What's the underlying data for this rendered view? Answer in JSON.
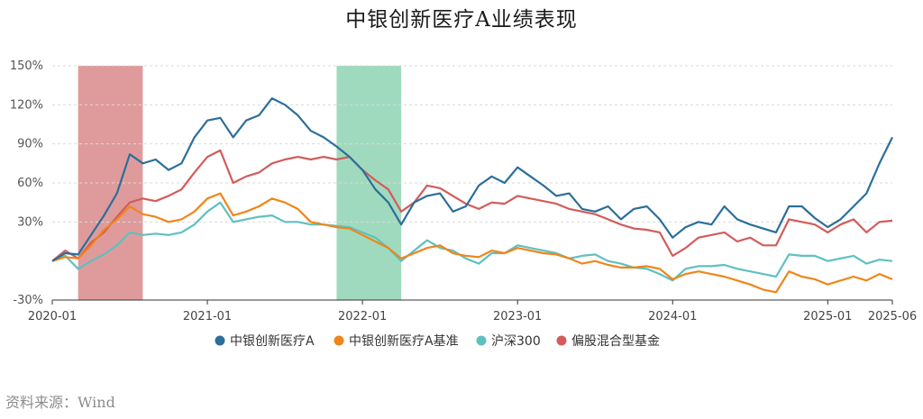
{
  "chart_data": {
    "type": "line",
    "title": "中银创新医疗A业绩表现",
    "xlabel": "",
    "ylabel": "",
    "x_tick_labels": [
      "2020-01",
      "2021-01",
      "2022-01",
      "2023-01",
      "2024-01",
      "2025-01",
      "2025-06"
    ],
    "y_tick_labels": [
      "150%",
      "120%",
      "90%",
      "60%",
      "30%",
      "-30%"
    ],
    "ylim": [
      -30,
      150
    ],
    "xlim": [
      "2020-01",
      "2025-06"
    ],
    "grid": true,
    "legend_position": "bottom",
    "highlight_periods": [
      {
        "start": "2020-03",
        "end": "2020-08",
        "color": "#d98a8a"
      },
      {
        "start": "2021-11",
        "end": "2022-04",
        "color": "#8fd3b3"
      }
    ],
    "series": [
      {
        "name": "中银创新医疗A",
        "color": "#2b6f9a",
        "points": [
          [
            "2020-01",
            0
          ],
          [
            "2020-02",
            6
          ],
          [
            "2020-03",
            5
          ],
          [
            "2020-04",
            20
          ],
          [
            "2020-05",
            35
          ],
          [
            "2020-06",
            52
          ],
          [
            "2020-07",
            82
          ],
          [
            "2020-08",
            75
          ],
          [
            "2020-09",
            78
          ],
          [
            "2020-10",
            70
          ],
          [
            "2020-11",
            75
          ],
          [
            "2020-12",
            95
          ],
          [
            "2021-01",
            108
          ],
          [
            "2021-02",
            110
          ],
          [
            "2021-03",
            95
          ],
          [
            "2021-04",
            108
          ],
          [
            "2021-05",
            112
          ],
          [
            "2021-06",
            125
          ],
          [
            "2021-07",
            120
          ],
          [
            "2021-08",
            112
          ],
          [
            "2021-09",
            100
          ],
          [
            "2021-10",
            95
          ],
          [
            "2021-11",
            88
          ],
          [
            "2021-12",
            80
          ],
          [
            "2022-01",
            70
          ],
          [
            "2022-02",
            55
          ],
          [
            "2022-03",
            45
          ],
          [
            "2022-04",
            28
          ],
          [
            "2022-05",
            45
          ],
          [
            "2022-06",
            50
          ],
          [
            "2022-07",
            52
          ],
          [
            "2022-08",
            38
          ],
          [
            "2022-09",
            42
          ],
          [
            "2022-10",
            58
          ],
          [
            "2022-11",
            65
          ],
          [
            "2022-12",
            60
          ],
          [
            "2023-01",
            72
          ],
          [
            "2023-02",
            65
          ],
          [
            "2023-03",
            58
          ],
          [
            "2023-04",
            50
          ],
          [
            "2023-05",
            52
          ],
          [
            "2023-06",
            40
          ],
          [
            "2023-07",
            38
          ],
          [
            "2023-08",
            42
          ],
          [
            "2023-09",
            32
          ],
          [
            "2023-10",
            40
          ],
          [
            "2023-11",
            42
          ],
          [
            "2023-12",
            32
          ],
          [
            "2024-01",
            18
          ],
          [
            "2024-02",
            26
          ],
          [
            "2024-03",
            30
          ],
          [
            "2024-04",
            28
          ],
          [
            "2024-05",
            42
          ],
          [
            "2024-06",
            32
          ],
          [
            "2024-07",
            28
          ],
          [
            "2024-08",
            25
          ],
          [
            "2024-09",
            22
          ],
          [
            "2024-10",
            42
          ],
          [
            "2024-11",
            42
          ],
          [
            "2024-12",
            33
          ],
          [
            "2025-01",
            26
          ],
          [
            "2025-02",
            32
          ],
          [
            "2025-03",
            42
          ],
          [
            "2025-04",
            52
          ],
          [
            "2025-05",
            75
          ],
          [
            "2025-06",
            95
          ]
        ]
      },
      {
        "name": "中银创新医疗A基准",
        "color": "#f0851a",
        "points": [
          [
            "2020-01",
            0
          ],
          [
            "2020-02",
            3
          ],
          [
            "2020-03",
            2
          ],
          [
            "2020-04",
            12
          ],
          [
            "2020-05",
            24
          ],
          [
            "2020-06",
            32
          ],
          [
            "2020-07",
            42
          ],
          [
            "2020-08",
            36
          ],
          [
            "2020-09",
            34
          ],
          [
            "2020-10",
            30
          ],
          [
            "2020-11",
            32
          ],
          [
            "2020-12",
            38
          ],
          [
            "2021-01",
            48
          ],
          [
            "2021-02",
            52
          ],
          [
            "2021-03",
            35
          ],
          [
            "2021-04",
            38
          ],
          [
            "2021-05",
            42
          ],
          [
            "2021-06",
            48
          ],
          [
            "2021-07",
            45
          ],
          [
            "2021-08",
            40
          ],
          [
            "2021-09",
            30
          ],
          [
            "2021-10",
            28
          ],
          [
            "2021-11",
            26
          ],
          [
            "2021-12",
            25
          ],
          [
            "2022-01",
            20
          ],
          [
            "2022-02",
            15
          ],
          [
            "2022-03",
            10
          ],
          [
            "2022-04",
            2
          ],
          [
            "2022-05",
            6
          ],
          [
            "2022-06",
            10
          ],
          [
            "2022-07",
            12
          ],
          [
            "2022-08",
            6
          ],
          [
            "2022-09",
            4
          ],
          [
            "2022-10",
            3
          ],
          [
            "2022-11",
            8
          ],
          [
            "2022-12",
            6
          ],
          [
            "2023-01",
            10
          ],
          [
            "2023-02",
            8
          ],
          [
            "2023-03",
            6
          ],
          [
            "2023-04",
            5
          ],
          [
            "2023-05",
            2
          ],
          [
            "2023-06",
            -2
          ],
          [
            "2023-07",
            0
          ],
          [
            "2023-08",
            -3
          ],
          [
            "2023-09",
            -5
          ],
          [
            "2023-10",
            -5
          ],
          [
            "2023-11",
            -4
          ],
          [
            "2023-12",
            -6
          ],
          [
            "2024-01",
            -14
          ],
          [
            "2024-02",
            -10
          ],
          [
            "2024-03",
            -8
          ],
          [
            "2024-04",
            -10
          ],
          [
            "2024-05",
            -12
          ],
          [
            "2024-06",
            -15
          ],
          [
            "2024-07",
            -18
          ],
          [
            "2024-08",
            -22
          ],
          [
            "2024-09",
            -24
          ],
          [
            "2024-10",
            -8
          ],
          [
            "2024-11",
            -12
          ],
          [
            "2024-12",
            -14
          ],
          [
            "2025-01",
            -18
          ],
          [
            "2025-02",
            -15
          ],
          [
            "2025-03",
            -12
          ],
          [
            "2025-04",
            -15
          ],
          [
            "2025-05",
            -10
          ],
          [
            "2025-06",
            -14
          ]
        ]
      },
      {
        "name": "沪深300",
        "color": "#5fc0c0",
        "points": [
          [
            "2020-01",
            0
          ],
          [
            "2020-02",
            4
          ],
          [
            "2020-03",
            -6
          ],
          [
            "2020-04",
            0
          ],
          [
            "2020-05",
            5
          ],
          [
            "2020-06",
            12
          ],
          [
            "2020-07",
            22
          ],
          [
            "2020-08",
            20
          ],
          [
            "2020-09",
            21
          ],
          [
            "2020-10",
            20
          ],
          [
            "2020-11",
            22
          ],
          [
            "2020-12",
            28
          ],
          [
            "2021-01",
            38
          ],
          [
            "2021-02",
            45
          ],
          [
            "2021-03",
            30
          ],
          [
            "2021-04",
            32
          ],
          [
            "2021-05",
            34
          ],
          [
            "2021-06",
            35
          ],
          [
            "2021-07",
            30
          ],
          [
            "2021-08",
            30
          ],
          [
            "2021-09",
            28
          ],
          [
            "2021-10",
            28
          ],
          [
            "2021-11",
            27
          ],
          [
            "2021-12",
            26
          ],
          [
            "2022-01",
            22
          ],
          [
            "2022-02",
            18
          ],
          [
            "2022-03",
            10
          ],
          [
            "2022-04",
            0
          ],
          [
            "2022-05",
            8
          ],
          [
            "2022-06",
            16
          ],
          [
            "2022-07",
            10
          ],
          [
            "2022-08",
            8
          ],
          [
            "2022-09",
            2
          ],
          [
            "2022-10",
            -2
          ],
          [
            "2022-11",
            6
          ],
          [
            "2022-12",
            6
          ],
          [
            "2023-01",
            12
          ],
          [
            "2023-02",
            10
          ],
          [
            "2023-03",
            8
          ],
          [
            "2023-04",
            6
          ],
          [
            "2023-05",
            2
          ],
          [
            "2023-06",
            4
          ],
          [
            "2023-07",
            5
          ],
          [
            "2023-08",
            0
          ],
          [
            "2023-09",
            -2
          ],
          [
            "2023-10",
            -5
          ],
          [
            "2023-11",
            -6
          ],
          [
            "2023-12",
            -10
          ],
          [
            "2024-01",
            -15
          ],
          [
            "2024-02",
            -6
          ],
          [
            "2024-03",
            -4
          ],
          [
            "2024-04",
            -4
          ],
          [
            "2024-05",
            -3
          ],
          [
            "2024-06",
            -6
          ],
          [
            "2024-07",
            -8
          ],
          [
            "2024-08",
            -10
          ],
          [
            "2024-09",
            -12
          ],
          [
            "2024-10",
            5
          ],
          [
            "2024-11",
            4
          ],
          [
            "2024-12",
            4
          ],
          [
            "2025-01",
            0
          ],
          [
            "2025-02",
            2
          ],
          [
            "2025-03",
            4
          ],
          [
            "2025-04",
            -2
          ],
          [
            "2025-05",
            1
          ],
          [
            "2025-06",
            0
          ]
        ]
      },
      {
        "name": "偏股混合型基金",
        "color": "#d35b5b",
        "points": [
          [
            "2020-01",
            0
          ],
          [
            "2020-02",
            8
          ],
          [
            "2020-03",
            2
          ],
          [
            "2020-04",
            14
          ],
          [
            "2020-05",
            22
          ],
          [
            "2020-06",
            34
          ],
          [
            "2020-07",
            45
          ],
          [
            "2020-08",
            48
          ],
          [
            "2020-09",
            46
          ],
          [
            "2020-10",
            50
          ],
          [
            "2020-11",
            55
          ],
          [
            "2020-12",
            68
          ],
          [
            "2021-01",
            80
          ],
          [
            "2021-02",
            85
          ],
          [
            "2021-03",
            60
          ],
          [
            "2021-04",
            65
          ],
          [
            "2021-05",
            68
          ],
          [
            "2021-06",
            75
          ],
          [
            "2021-07",
            78
          ],
          [
            "2021-08",
            80
          ],
          [
            "2021-09",
            78
          ],
          [
            "2021-10",
            80
          ],
          [
            "2021-11",
            78
          ],
          [
            "2021-12",
            80
          ],
          [
            "2022-01",
            70
          ],
          [
            "2022-02",
            62
          ],
          [
            "2022-03",
            55
          ],
          [
            "2022-04",
            38
          ],
          [
            "2022-05",
            45
          ],
          [
            "2022-06",
            58
          ],
          [
            "2022-07",
            56
          ],
          [
            "2022-08",
            50
          ],
          [
            "2022-09",
            44
          ],
          [
            "2022-10",
            40
          ],
          [
            "2022-11",
            45
          ],
          [
            "2022-12",
            44
          ],
          [
            "2023-01",
            50
          ],
          [
            "2023-02",
            48
          ],
          [
            "2023-03",
            46
          ],
          [
            "2023-04",
            44
          ],
          [
            "2023-05",
            40
          ],
          [
            "2023-06",
            38
          ],
          [
            "2023-07",
            36
          ],
          [
            "2023-08",
            32
          ],
          [
            "2023-09",
            28
          ],
          [
            "2023-10",
            25
          ],
          [
            "2023-11",
            24
          ],
          [
            "2023-12",
            22
          ],
          [
            "2024-01",
            4
          ],
          [
            "2024-02",
            10
          ],
          [
            "2024-03",
            18
          ],
          [
            "2024-04",
            20
          ],
          [
            "2024-05",
            22
          ],
          [
            "2024-06",
            15
          ],
          [
            "2024-07",
            18
          ],
          [
            "2024-08",
            12
          ],
          [
            "2024-09",
            12
          ],
          [
            "2024-10",
            32
          ],
          [
            "2024-11",
            30
          ],
          [
            "2024-12",
            28
          ],
          [
            "2025-01",
            22
          ],
          [
            "2025-02",
            28
          ],
          [
            "2025-03",
            32
          ],
          [
            "2025-04",
            22
          ],
          [
            "2025-05",
            30
          ],
          [
            "2025-06",
            31
          ]
        ]
      }
    ]
  },
  "source_note": "资料来源：Wind"
}
